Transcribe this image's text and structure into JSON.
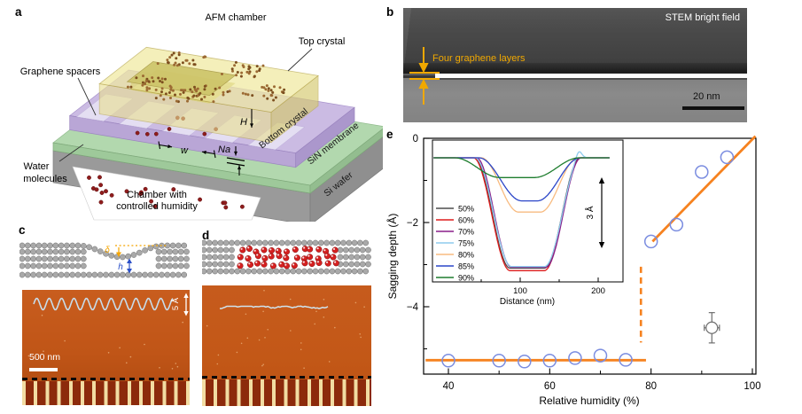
{
  "panel_a": {
    "label": "a",
    "labels": {
      "afm_chamber": "AFM chamber",
      "top_crystal": "Top crystal",
      "graphene_spacers": "Graphene spacers",
      "water_line1": "Water",
      "water_line2": "molecules",
      "chamber_line1": "Chamber with",
      "chamber_line2": "controlled humidity",
      "bottom_crystal": "Bottom crystal",
      "sin_membrane": "SiN membrane",
      "si_wafer": "Si wafer",
      "dim_H": "H",
      "dim_Na": "Na",
      "dim_w": "w"
    }
  },
  "panel_b": {
    "label": "b",
    "title": "STEM bright field",
    "annotation": "Four graphene layers",
    "scale_bar": "20 nm"
  },
  "panel_c": {
    "label": "c",
    "delta": "δ",
    "h": "h",
    "trace_scale": "5 Å",
    "scale_bar": "500 nm"
  },
  "panel_d": {
    "label": "d"
  },
  "panel_e": {
    "label": "e"
  },
  "colors": {
    "accent_orange": "#f6821f",
    "marker_blue": "#7b8de0",
    "amber": "#f0a800"
  },
  "chart_data": [
    {
      "type": "scatter",
      "title": "Sagging depth vs relative humidity",
      "xlabel": "Relative humidity (%)",
      "ylabel": "Sagging depth (Å)",
      "xlim": [
        35,
        100.7
      ],
      "ylim": [
        -5.6,
        0
      ],
      "xticks": [
        40,
        60,
        80,
        100
      ],
      "xminorticks": [
        50,
        70,
        90
      ],
      "yticks": [
        0,
        -2,
        -4
      ],
      "yminorticks": [
        -1,
        -3,
        -5
      ],
      "marker_color": "#7b8de0",
      "fit_color": "#f6821f",
      "points": [
        [
          40,
          -5.28
        ],
        [
          50,
          -5.28
        ],
        [
          55,
          -5.3
        ],
        [
          60,
          -5.28
        ],
        [
          65,
          -5.22
        ],
        [
          70,
          -5.16
        ],
        [
          75,
          -5.26
        ],
        [
          80,
          -2.45
        ],
        [
          85,
          -2.05
        ],
        [
          90,
          -0.8
        ],
        [
          95,
          -0.45
        ]
      ],
      "plateau_line": {
        "x1": 35.5,
        "x2": 79,
        "y": -5.27
      },
      "rising_line": {
        "x1": 80.3,
        "y1": -2.45,
        "x2": 100.6,
        "y2": 0.05
      },
      "transition_line": {
        "x": 78,
        "y1": -3.05,
        "y2": -4.85
      },
      "error_example": {
        "x": 92,
        "y": -4.5,
        "xerr": 1.5,
        "yerr": 0.36,
        "color": "#6e6e6e"
      }
    },
    {
      "type": "line",
      "title": "AFM sagging profiles at different humidities",
      "xlabel": "Distance (nm)",
      "xlim": [
        -11,
        215
      ],
      "xticks": [
        100,
        200
      ],
      "xminorticks": [
        50,
        150
      ],
      "scale_annotation": "3 Å",
      "legend_position": "left",
      "series": [
        {
          "label": "50%",
          "color": "#4d4d4d",
          "depth": 4.92,
          "center": 109,
          "a": 68,
          "b": 22
        },
        {
          "label": "60%",
          "color": "#dd1c1c",
          "depth": 5.03,
          "center": 109,
          "a": 69,
          "b": 22
        },
        {
          "label": "70%",
          "color": "#8a1f8a",
          "depth": 4.88,
          "center": 111,
          "a": 67,
          "b": 22
        },
        {
          "label": "75%",
          "color": "#8ecbee",
          "depth": 4.85,
          "center": 110,
          "a": 68,
          "b": 21,
          "bump": {
            "x": 175,
            "h": 0.3,
            "w": 5.5
          }
        },
        {
          "label": "80%",
          "color": "#f8bb80",
          "depth": 2.42,
          "center": 112,
          "a": 62,
          "b": 14
        },
        {
          "label": "85%",
          "color": "#2b46c8",
          "depth": 1.92,
          "center": 112,
          "a": 65,
          "b": 10
        },
        {
          "label": "90%",
          "color": "#1e7d2e",
          "depth": 0.88,
          "center": 96,
          "a": 80,
          "b": 22
        }
      ]
    }
  ]
}
